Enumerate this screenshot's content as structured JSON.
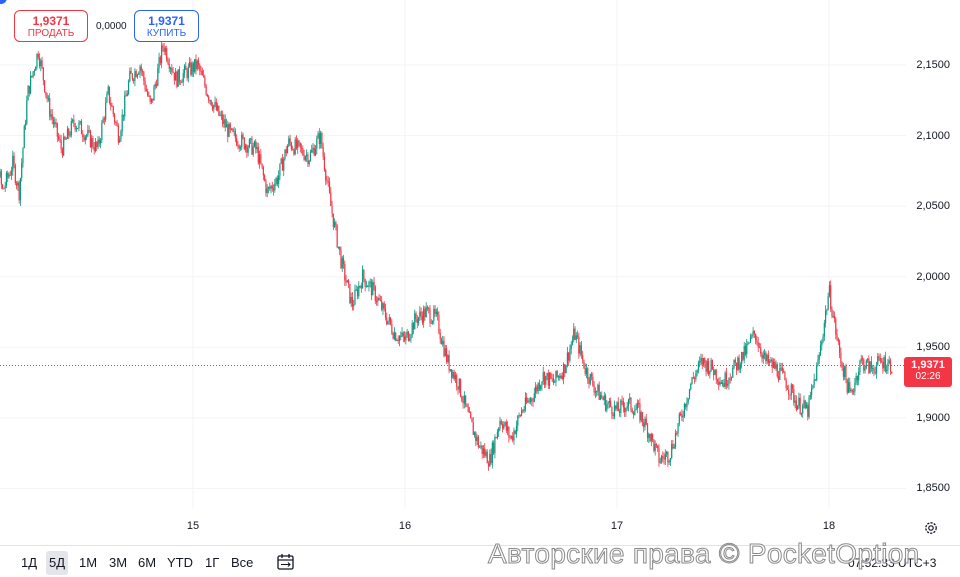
{
  "trade": {
    "sell_price": "1,9371",
    "sell_label": "ПРОДАТЬ",
    "spread": "0,0000",
    "buy_price": "1,9371",
    "buy_label": "КУПИТЬ"
  },
  "current_price": {
    "price": "1,9371",
    "countdown": "02:26",
    "value": 1.9371
  },
  "colors": {
    "up": "#089981",
    "down": "#f23645",
    "buy_accent": "#2962ff",
    "grid": "#f0f3fa"
  },
  "ranges": [
    "1Д",
    "5Д",
    "1М",
    "3М",
    "6М",
    "YTD",
    "1Г",
    "Все"
  ],
  "active_range": "5Д",
  "icons": {
    "calendar": "calendar-range-icon",
    "settings": "gear-icon"
  },
  "clock": "07:52:33 UTC+3",
  "watermark": "Авторские права © PocketOption",
  "chart_data": {
    "type": "candlestick",
    "x_labels": [
      "15",
      "16",
      "17",
      "18"
    ],
    "y_ticks": [
      "2,1500",
      "2,1000",
      "2,0500",
      "2,0000",
      "1,9500",
      "1,9000",
      "1,8500"
    ],
    "y_tick_values": [
      2.15,
      2.1,
      2.05,
      2.0,
      1.95,
      1.9,
      1.85
    ],
    "ylim": [
      1.8255,
      2.2045
    ],
    "grid": true,
    "approx_path": [
      [
        14.0,
        2.095
      ],
      [
        14.05,
        2.11
      ],
      [
        14.1,
        2.06
      ],
      [
        14.15,
        2.08
      ],
      [
        14.18,
        2.06
      ],
      [
        14.22,
        2.13
      ],
      [
        14.27,
        2.16
      ],
      [
        14.32,
        2.12
      ],
      [
        14.38,
        2.09
      ],
      [
        14.44,
        2.11
      ],
      [
        14.5,
        2.1
      ],
      [
        14.55,
        2.09
      ],
      [
        14.6,
        2.13
      ],
      [
        14.65,
        2.1
      ],
      [
        14.7,
        2.14
      ],
      [
        14.75,
        2.15
      ],
      [
        14.8,
        2.12
      ],
      [
        14.86,
        2.165
      ],
      [
        14.92,
        2.14
      ],
      [
        14.97,
        2.145
      ],
      [
        15.02,
        2.15
      ],
      [
        15.07,
        2.13
      ],
      [
        15.12,
        2.115
      ],
      [
        15.18,
        2.1
      ],
      [
        15.24,
        2.095
      ],
      [
        15.3,
        2.09
      ],
      [
        15.35,
        2.06
      ],
      [
        15.4,
        2.07
      ],
      [
        15.45,
        2.095
      ],
      [
        15.5,
        2.09
      ],
      [
        15.55,
        2.085
      ],
      [
        15.6,
        2.1
      ],
      [
        15.65,
        2.05
      ],
      [
        15.7,
        2.01
      ],
      [
        15.75,
        1.98
      ],
      [
        15.8,
        2.0
      ],
      [
        15.85,
        1.99
      ],
      [
        15.9,
        1.975
      ],
      [
        15.95,
        1.96
      ],
      [
        16.0,
        1.955
      ],
      [
        16.05,
        1.97
      ],
      [
        16.1,
        1.975
      ],
      [
        16.15,
        1.97
      ],
      [
        16.2,
        1.94
      ],
      [
        16.25,
        1.925
      ],
      [
        16.3,
        1.9
      ],
      [
        16.35,
        1.88
      ],
      [
        16.4,
        1.87
      ],
      [
        16.45,
        1.9
      ],
      [
        16.5,
        1.885
      ],
      [
        16.55,
        1.905
      ],
      [
        16.6,
        1.915
      ],
      [
        16.65,
        1.93
      ],
      [
        16.7,
        1.925
      ],
      [
        16.75,
        1.935
      ],
      [
        16.8,
        1.96
      ],
      [
        16.85,
        1.935
      ],
      [
        16.9,
        1.92
      ],
      [
        16.95,
        1.91
      ],
      [
        17.0,
        1.905
      ],
      [
        17.05,
        1.91
      ],
      [
        17.1,
        1.905
      ],
      [
        17.15,
        1.89
      ],
      [
        17.2,
        1.87
      ],
      [
        17.25,
        1.875
      ],
      [
        17.3,
        1.9
      ],
      [
        17.35,
        1.925
      ],
      [
        17.4,
        1.94
      ],
      [
        17.45,
        1.935
      ],
      [
        17.5,
        1.925
      ],
      [
        17.55,
        1.935
      ],
      [
        17.6,
        1.945
      ],
      [
        17.65,
        1.96
      ],
      [
        17.7,
        1.94
      ],
      [
        17.75,
        1.935
      ],
      [
        17.8,
        1.925
      ],
      [
        17.85,
        1.91
      ],
      [
        17.9,
        1.905
      ],
      [
        17.95,
        1.94
      ],
      [
        18.0,
        1.99
      ],
      [
        18.05,
        1.945
      ],
      [
        18.1,
        1.915
      ],
      [
        18.15,
        1.94
      ],
      [
        18.2,
        1.935
      ],
      [
        18.25,
        1.94
      ],
      [
        18.3,
        1.937
      ]
    ]
  }
}
